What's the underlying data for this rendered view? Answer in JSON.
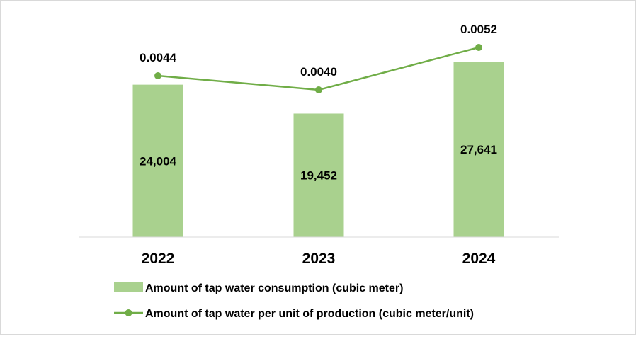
{
  "chart_data": {
    "type": "bar",
    "categories": [
      "2022",
      "2023",
      "2024"
    ],
    "series": [
      {
        "name": "Amount of tap water consumption (cubic meter)",
        "type": "bar",
        "values": [
          24004,
          19452,
          27641
        ],
        "labels": [
          "24,004",
          "19,452",
          "27,641"
        ],
        "color": "#a9d18e"
      },
      {
        "name": "Amount of tap water per unit of production (cubic meter/unit)",
        "type": "line",
        "values": [
          0.0044,
          0.004,
          0.0052
        ],
        "labels": [
          "0.0044",
          "0.0040",
          "0.0052"
        ],
        "color": "#70ad47"
      }
    ],
    "grid": false,
    "legend_position": "bottom"
  }
}
